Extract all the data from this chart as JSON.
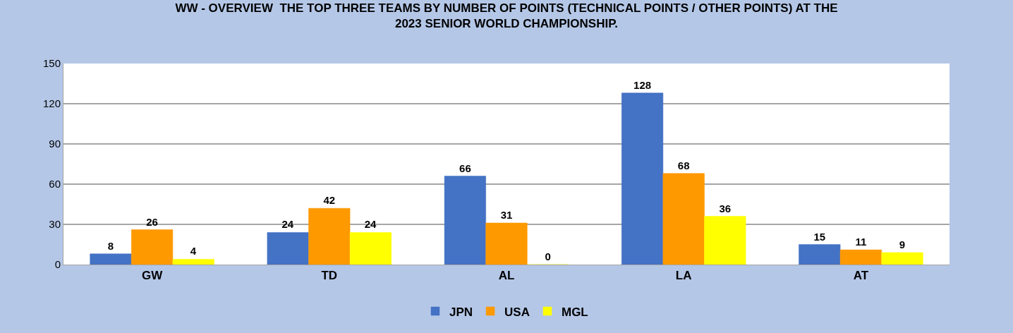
{
  "chart_data": {
    "type": "bar",
    "title": "WW - OVERVIEW  THE TOP THREE TEAMS BY NUMBER OF POINTS (TECHNICAL POINTS / OTHER POINTS) AT THE 2023 SENIOR WORLD CHAMPIONSHIP.",
    "categories": [
      "GW",
      "TD",
      "AL",
      "LA",
      "AT"
    ],
    "series": [
      {
        "name": "JPN",
        "color": "#4472c4",
        "values": [
          8,
          24,
          66,
          128,
          15
        ]
      },
      {
        "name": "USA",
        "color": "#ff9900",
        "values": [
          26,
          42,
          31,
          68,
          11
        ]
      },
      {
        "name": "MGL",
        "color": "#ffff00",
        "values": [
          4,
          24,
          0,
          36,
          9
        ]
      }
    ],
    "ylim": [
      0,
      150
    ],
    "yticks": [
      0,
      30,
      60,
      90,
      120,
      150
    ],
    "grid": "y",
    "legend": "bottom",
    "data_labels": true
  }
}
